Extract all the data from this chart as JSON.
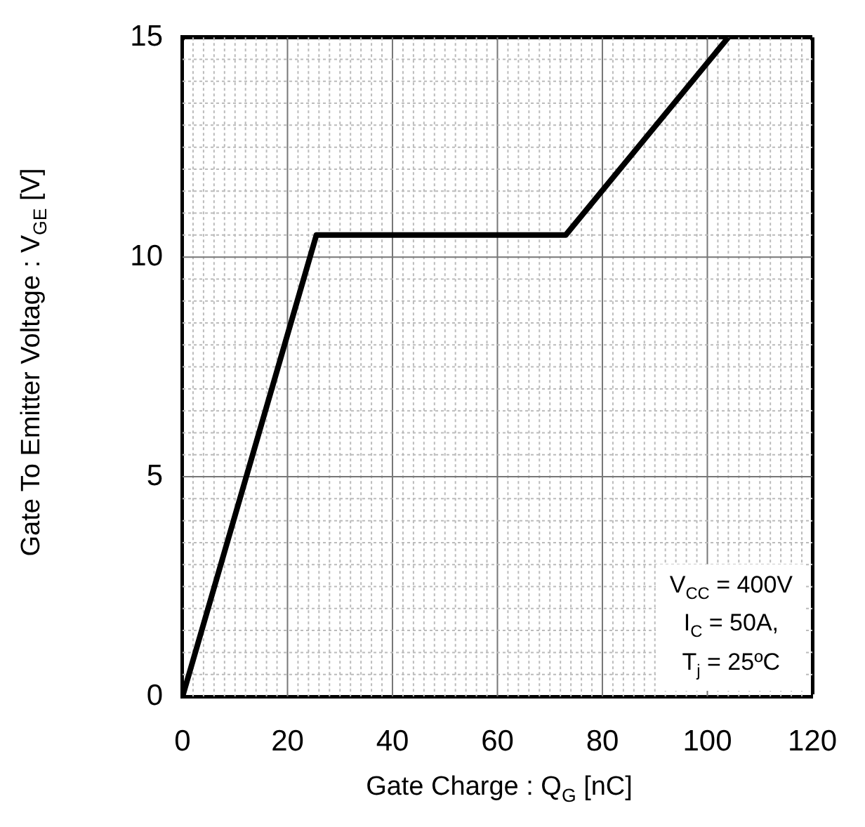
{
  "chart_data": {
    "type": "line",
    "xlabel": "Gate Charge : Q$_{G}$ [nC]",
    "ylabel": "Gate To Emitter  Voltage : V$_{GE}$ [V]",
    "x": [
      0,
      25.5,
      73,
      104
    ],
    "series": [
      {
        "color": "#000000",
        "values": [
          0,
          10.5,
          10.5,
          15
        ]
      }
    ],
    "xlim": [
      0,
      120
    ],
    "ylim": [
      0,
      15
    ],
    "xticks": [
      0,
      {
        "value": 2,
        "label": null
      },
      {
        "value": 4,
        "label": null
      },
      {
        "value": 6,
        "label": null
      },
      {
        "value": 8,
        "label": null
      },
      {
        "value": 10,
        "label": null
      },
      {
        "value": 12,
        "label": null
      },
      {
        "value": 14,
        "label": null
      },
      {
        "value": 16,
        "label": null
      },
      {
        "value": 18,
        "label": null
      },
      20,
      {
        "value": 22,
        "label": null
      },
      {
        "value": 24,
        "label": null
      },
      {
        "value": 26,
        "label": null
      },
      {
        "value": 28,
        "label": null
      },
      {
        "value": 30,
        "label": null
      },
      {
        "value": 32,
        "label": null
      },
      {
        "value": 34,
        "label": null
      },
      {
        "value": 36,
        "label": null
      },
      {
        "value": 38,
        "label": null
      },
      40,
      {
        "value": 42,
        "label": null
      },
      {
        "value": 44,
        "label": null
      },
      {
        "value": 46,
        "label": null
      },
      {
        "value": 48,
        "label": null
      },
      {
        "value": 50,
        "label": null
      },
      {
        "value": 52,
        "label": null
      },
      {
        "value": 54,
        "label": null
      },
      {
        "value": 56,
        "label": null
      },
      {
        "value": 58,
        "label": null
      },
      60,
      {
        "value": 62,
        "label": null
      },
      {
        "value": 64,
        "label": null
      },
      {
        "value": 66,
        "label": null
      },
      {
        "value": 68,
        "label": null
      },
      {
        "value": 70,
        "label": null
      },
      {
        "value": 72,
        "label": null
      },
      {
        "value": 74,
        "label": null
      },
      {
        "value": 76,
        "label": null
      },
      {
        "value": 78,
        "label": null
      },
      80,
      {
        "value": 82,
        "label": null
      },
      {
        "value": 84,
        "label": null
      },
      {
        "value": 86,
        "label": null
      },
      {
        "value": 88,
        "label": null
      },
      {
        "value": 90,
        "label": null
      },
      {
        "value": 92,
        "label": null
      },
      {
        "value": 94,
        "label": null
      },
      {
        "value": 96,
        "label": null
      },
      {
        "value": 98,
        "label": null
      },
      100,
      {
        "value": 102,
        "label": null
      },
      {
        "value": 104,
        "label": null
      },
      {
        "value": 106,
        "label": null
      },
      {
        "value": 108,
        "label": null
      },
      {
        "value": 110,
        "label": null
      },
      {
        "value": 112,
        "label": null
      },
      {
        "value": 114,
        "label": null
      },
      {
        "value": 116,
        "label": null
      },
      {
        "value": 118,
        "label": null
      },
      120
    ],
    "yticks": [
      0,
      {
        "value": 0.5,
        "label": null
      },
      {
        "value": 1,
        "label": null
      },
      {
        "value": 1.5,
        "label": null
      },
      {
        "value": 2,
        "label": null
      },
      {
        "value": 2.5,
        "label": null
      },
      {
        "value": 3,
        "label": null
      },
      {
        "value": 3.5,
        "label": null
      },
      {
        "value": 4,
        "label": null
      },
      {
        "value": 4.5,
        "label": null
      },
      5,
      {
        "value": 5.5,
        "label": null
      },
      {
        "value": 6,
        "label": null
      },
      {
        "value": 6.5,
        "label": null
      },
      {
        "value": 7,
        "label": null
      },
      {
        "value": 7.5,
        "label": null
      },
      {
        "value": 8,
        "label": null
      },
      {
        "value": 8.5,
        "label": null
      },
      {
        "value": 9,
        "label": null
      },
      {
        "value": 9.5,
        "label": null
      },
      10,
      {
        "value": 10.5,
        "label": null
      },
      {
        "value": 11,
        "label": null
      },
      {
        "value": 11.5,
        "label": null
      },
      {
        "value": 12,
        "label": null
      },
      {
        "value": 12.5,
        "label": null
      },
      {
        "value": 13,
        "label": null
      },
      {
        "value": 13.5,
        "label": null
      },
      {
        "value": 14,
        "label": null
      },
      {
        "value": 14.5,
        "label": null
      },
      15
    ],
    "grid": true,
    "legend": false,
    "marker": "none",
    "line_style": "solid",
    "annotations": [
      "V$_{CC}$ = 400V",
      "I$_{C}$ = 50A,",
      "T$_{j}$ = 25ºC"
    ]
  }
}
